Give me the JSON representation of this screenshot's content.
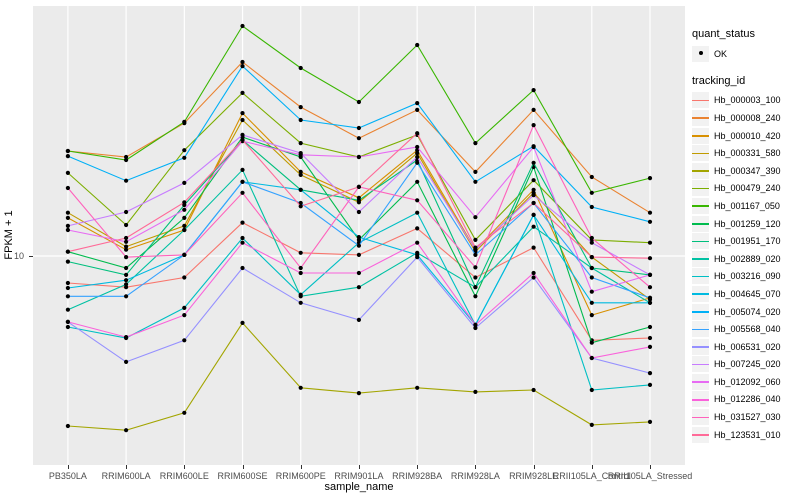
{
  "figure": {
    "y_axis": {
      "title": "FPKM + 1",
      "tick_label": "10"
    },
    "x_axis": {
      "title": "sample_name"
    },
    "legend": {
      "quant_status_title": "quant_status",
      "quant_status_items": [
        {
          "label": "OK"
        }
      ],
      "tracking_title": "tracking_id"
    }
  },
  "chart_data": {
    "type": "line",
    "title": "",
    "xlabel": "sample_name",
    "ylabel": "FPKM + 1",
    "y_scale": "log10",
    "y_tick_values": [
      10
    ],
    "ylim_approx": [
      1.05,
      105
    ],
    "grid": "major",
    "legend_position": "right",
    "point_shape": "filled-circle",
    "panel_background": "#EBEBEB",
    "categories": [
      "PB350LA",
      "RRIM600LA",
      "RRIM600LE",
      "RRIM600SE",
      "RRIM600PE",
      "RRIM901LA",
      "RRIM928BA",
      "RRIM928LA",
      "RRIM928LE",
      "RRII105LA_Control",
      "RRII105LA_Stressed"
    ],
    "series": [
      {
        "name": "Hb_000003_100",
        "color": "#F8766D",
        "values": [
          7.8,
          7.5,
          8.2,
          13.6,
          10.3,
          10.1,
          12.9,
          8.2,
          10.8,
          4.6,
          4.7
        ]
      },
      {
        "name": "Hb_000008_240",
        "color": "#EA8331",
        "values": [
          26.3,
          24.9,
          34.0,
          59.7,
          39.4,
          29.6,
          38.4,
          21.7,
          38.4,
          20.7,
          14.9
        ]
      },
      {
        "name": "Hb_000010_420",
        "color": "#D89000",
        "values": [
          14.2,
          10.6,
          12.7,
          37.3,
          21.7,
          17.1,
          26.5,
          10.6,
          18.4,
          5.8,
          6.8
        ]
      },
      {
        "name": "Hb_000331_580",
        "color": "#C09B00",
        "values": [
          14.9,
          10.9,
          13.2,
          35.0,
          21.1,
          16.4,
          25.8,
          10.4,
          17.9,
          9.9,
          6.7
        ]
      },
      {
        "name": "Hb_000347_390",
        "color": "#A3A500",
        "values": [
          2.09,
          2.01,
          2.36,
          5.4,
          2.97,
          2.83,
          2.97,
          2.86,
          2.91,
          2.11,
          2.17
        ]
      },
      {
        "name": "Hb_000479_240",
        "color": "#7CAE00",
        "values": [
          21.5,
          13.3,
          26.5,
          44.9,
          28.3,
          24.9,
          30.5,
          11.6,
          20.1,
          11.6,
          11.3
        ]
      },
      {
        "name": "Hb_001167_050",
        "color": "#39B600",
        "values": [
          26.3,
          24.2,
          34.4,
          83.2,
          56.5,
          41.3,
          69.8,
          28.3,
          46.1,
          17.9,
          20.5
        ]
      },
      {
        "name": "Hb_001259_120",
        "color": "#00BB4E",
        "values": [
          10.4,
          8.95,
          14.2,
          29.9,
          24.9,
          11.6,
          19.8,
          6.9,
          22.7,
          4.5,
          5.2
        ]
      },
      {
        "name": "Hb_001951_170",
        "color": "#00BF7D",
        "values": [
          9.5,
          8.4,
          16.0,
          29.1,
          18.4,
          16.7,
          24.2,
          7.5,
          23.6,
          8.95,
          8.4
        ]
      },
      {
        "name": "Hb_002889_020",
        "color": "#00C1A3",
        "values": [
          6.1,
          7.7,
          12.7,
          22.1,
          6.9,
          7.5,
          10.3,
          7.5,
          13.1,
          8.95,
          6.5
        ]
      },
      {
        "name": "Hb_003216_090",
        "color": "#00BFC4",
        "values": [
          5.2,
          4.7,
          6.2,
          11.8,
          7.0,
          11.3,
          14.9,
          5.3,
          14.6,
          2.91,
          3.05
        ]
      },
      {
        "name": "Hb_004645_070",
        "color": "#00BAE0",
        "values": [
          7.45,
          8.0,
          10.1,
          19.8,
          18.4,
          11.9,
          10.1,
          5.3,
          14.6,
          6.5,
          6.5
        ]
      },
      {
        "name": "Hb_005074_020",
        "color": "#00B0F6",
        "values": [
          25.1,
          20.0,
          24.7,
          57.5,
          35.0,
          32.5,
          40.9,
          19.8,
          27.5,
          15.7,
          13.7
        ]
      },
      {
        "name": "Hb_005568_040",
        "color": "#35A2FF",
        "values": [
          6.9,
          6.9,
          10.1,
          19.8,
          16.3,
          11.0,
          23.6,
          10.1,
          16.3,
          8.2,
          6.8
        ]
      },
      {
        "name": "Hb_006531_020",
        "color": "#9590FF",
        "values": [
          5.45,
          3.77,
          4.6,
          8.95,
          6.5,
          5.55,
          9.9,
          5.15,
          8.2,
          3.91,
          3.4
        ]
      },
      {
        "name": "Hb_007245_020",
        "color": "#C77CFF",
        "values": [
          13.2,
          15.0,
          19.6,
          30.5,
          25.8,
          15.0,
          24.9,
          10.6,
          17.5,
          11.3,
          8.4
        ]
      },
      {
        "name": "Hb_012092_060",
        "color": "#E76BF3",
        "values": [
          12.7,
          11.4,
          15.3,
          28.8,
          25.4,
          24.9,
          27.3,
          14.3,
          27.3,
          7.2,
          8.4
        ]
      },
      {
        "name": "Hb_012286_040",
        "color": "#FA62DB",
        "values": [
          5.45,
          4.74,
          5.8,
          11.3,
          8.55,
          8.55,
          11.3,
          5.3,
          8.55,
          3.91,
          4.33
        ]
      },
      {
        "name": "Hb_031527_030",
        "color": "#FF62BC",
        "values": [
          18.7,
          9.9,
          10.1,
          17.9,
          8.95,
          18.9,
          16.7,
          9.0,
          33.4,
          11.8,
          7.5
        ]
      },
      {
        "name": "Hb_123531_010",
        "color": "#FF6A98",
        "values": [
          10.4,
          11.8,
          16.4,
          29.1,
          15.8,
          18.9,
          31.0,
          10.8,
          16.3,
          9.9,
          9.8
        ]
      }
    ]
  }
}
